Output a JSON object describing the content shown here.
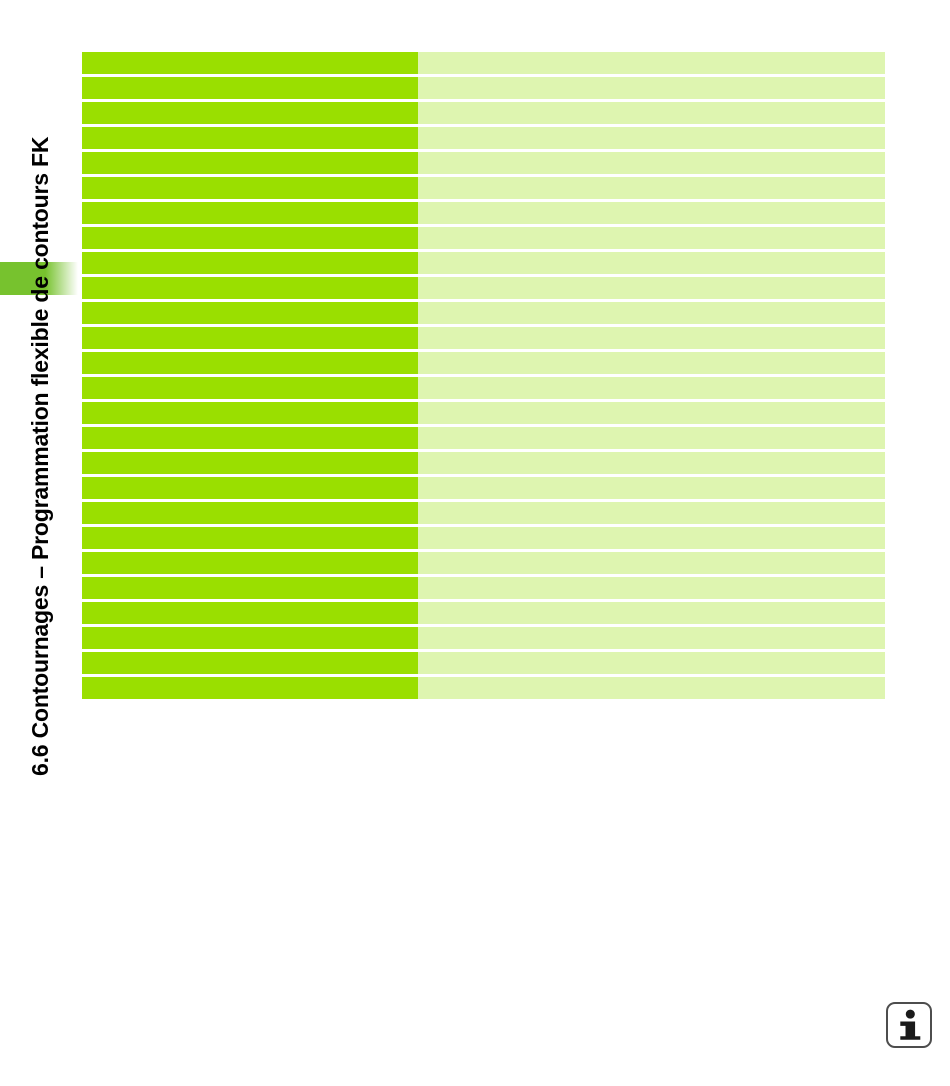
{
  "sidebar": {
    "heading": "6.6 Contournages – Programmation flexible de contours FK"
  },
  "table": {
    "rows": [
      {
        "left": "",
        "right": ""
      },
      {
        "left": "",
        "right": ""
      },
      {
        "left": "",
        "right": ""
      },
      {
        "left": "",
        "right": ""
      },
      {
        "left": "",
        "right": ""
      },
      {
        "left": "",
        "right": ""
      },
      {
        "left": "",
        "right": ""
      },
      {
        "left": "",
        "right": ""
      },
      {
        "left": "",
        "right": ""
      },
      {
        "left": "",
        "right": ""
      },
      {
        "left": "",
        "right": ""
      },
      {
        "left": "",
        "right": ""
      },
      {
        "left": "",
        "right": ""
      },
      {
        "left": "",
        "right": ""
      },
      {
        "left": "",
        "right": ""
      },
      {
        "left": "",
        "right": ""
      },
      {
        "left": "",
        "right": ""
      },
      {
        "left": "",
        "right": ""
      },
      {
        "left": "",
        "right": ""
      },
      {
        "left": "",
        "right": ""
      },
      {
        "left": "",
        "right": ""
      },
      {
        "left": "",
        "right": ""
      },
      {
        "left": "",
        "right": ""
      },
      {
        "left": "",
        "right": ""
      },
      {
        "left": "",
        "right": ""
      },
      {
        "left": "",
        "right": ""
      }
    ]
  },
  "footer": {
    "info_icon_glyph": "i"
  },
  "colors": {
    "row_left_green": "#9ADF00",
    "row_right_green": "#DEF5B0",
    "tab_green": "#77C22E",
    "info_border": "#4d4d4d"
  }
}
